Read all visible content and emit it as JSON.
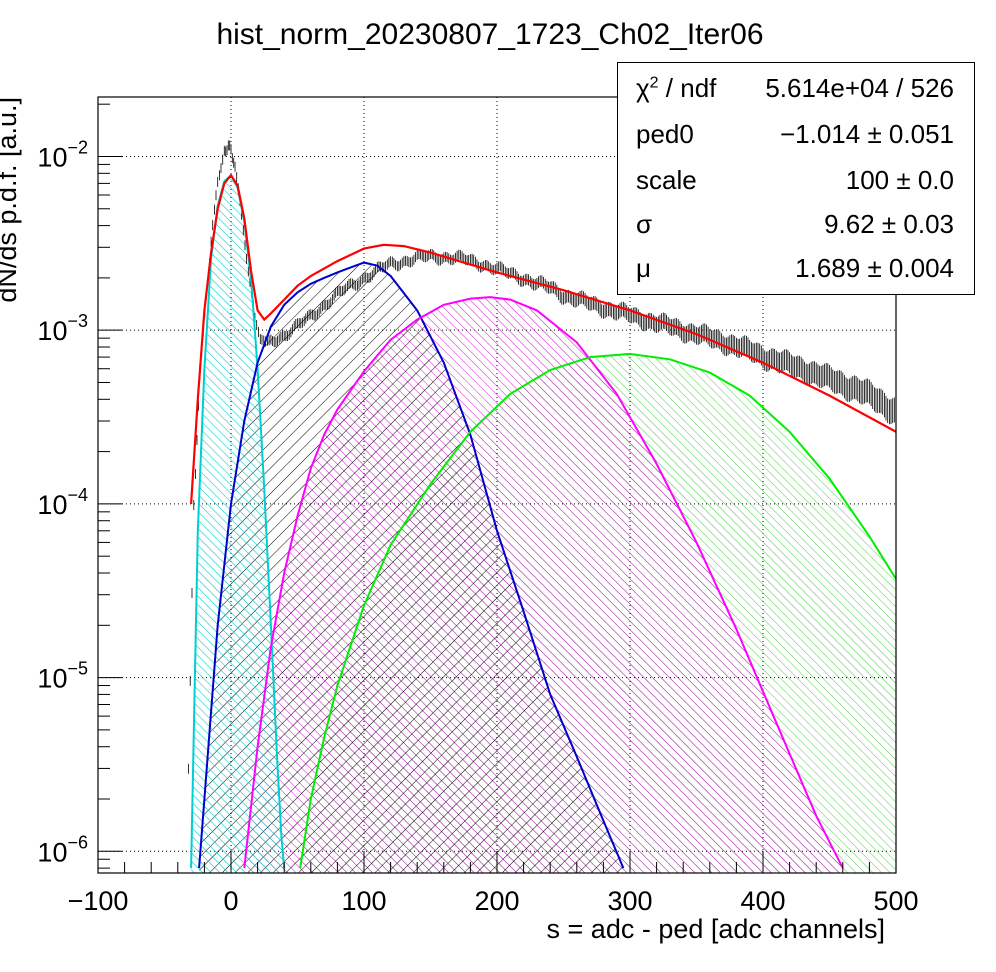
{
  "chart_data": {
    "type": "histogram-fit",
    "title": "hist_norm_20230807_1723_Ch02_Iter06",
    "xlabel": "s = adc - ped [adc channels]",
    "ylabel": "dN/ds p.d.f. [a.u.]",
    "xlim": [
      -100,
      500
    ],
    "ylim": [
      7.5e-07,
      0.022
    ],
    "yscale": "log",
    "grid": true,
    "x_ticks": [
      "−100",
      "0",
      "100",
      "200",
      "300",
      "400",
      "500"
    ],
    "x_tick_values": [
      -100,
      0,
      100,
      200,
      300,
      400,
      500
    ],
    "y_ticks": [
      {
        "base": "10",
        "exp": "−6",
        "value": 1e-06
      },
      {
        "base": "10",
        "exp": "−5",
        "value": 1e-05
      },
      {
        "base": "10",
        "exp": "−4",
        "value": 0.0001
      },
      {
        "base": "10",
        "exp": "−3",
        "value": 0.001
      },
      {
        "base": "10",
        "exp": "−2",
        "value": 0.01
      }
    ],
    "data_histogram": {
      "color": "#000000",
      "x": [
        -32,
        -28,
        -22,
        -15,
        -10,
        -5,
        -2,
        0,
        3,
        8,
        13,
        18,
        22,
        26,
        30,
        40,
        50,
        60,
        70,
        80,
        90,
        100,
        110,
        120,
        130,
        140,
        150,
        160,
        170,
        180,
        190,
        200,
        210,
        220,
        230,
        240,
        250,
        260,
        270,
        280,
        290,
        300,
        310,
        320,
        330,
        340,
        350,
        360,
        370,
        380,
        390,
        400,
        410,
        420,
        430,
        440,
        450,
        460,
        470,
        480,
        490,
        500
      ],
      "y": [
        3e-06,
        0.0001,
        0.0008,
        0.0032,
        0.007,
        0.0105,
        0.0115,
        0.011,
        0.0085,
        0.0045,
        0.0022,
        0.0012,
        0.0009,
        0.00086,
        0.00087,
        0.00094,
        0.00105,
        0.0012,
        0.0014,
        0.0016,
        0.0018,
        0.002,
        0.0022,
        0.0024,
        0.0025,
        0.0026,
        0.00265,
        0.00265,
        0.0026,
        0.0025,
        0.0024,
        0.00225,
        0.0021,
        0.002,
        0.00185,
        0.00175,
        0.0016,
        0.0015,
        0.00142,
        0.00135,
        0.00128,
        0.00122,
        0.00116,
        0.0011,
        0.00105,
        0.001,
        0.00095,
        0.0009,
        0.00086,
        0.00081,
        0.00076,
        0.00071,
        0.00067,
        0.00063,
        0.0006,
        0.00056,
        0.00052,
        0.00049,
        0.00046,
        0.00042,
        0.00038,
        0.00034
      ]
    },
    "fit_total": {
      "color": "#ff0000",
      "x": [
        -30,
        -25,
        -20,
        -15,
        -10,
        -5,
        0,
        5,
        10,
        15,
        20,
        25,
        30,
        40,
        50,
        60,
        80,
        100,
        115,
        130,
        150,
        175,
        200,
        250,
        300,
        350,
        400,
        450,
        500
      ],
      "y": [
        0.0001,
        0.0004,
        0.0013,
        0.0028,
        0.005,
        0.007,
        0.0078,
        0.0068,
        0.0044,
        0.0022,
        0.0013,
        0.00115,
        0.00125,
        0.0015,
        0.0018,
        0.00205,
        0.0025,
        0.00295,
        0.0031,
        0.00305,
        0.0028,
        0.00245,
        0.00215,
        0.0017,
        0.0013,
        0.00095,
        0.00065,
        0.00042,
        0.00026
      ]
    },
    "components": [
      {
        "color": "#00ced1",
        "x": [
          -30,
          -25,
          -20,
          -15,
          -10,
          -5,
          0,
          5,
          10,
          15,
          20,
          25,
          30,
          35,
          38,
          40
        ],
        "y": [
          8e-07,
          7e-05,
          0.0006,
          0.0026,
          0.0052,
          0.0072,
          0.0078,
          0.0066,
          0.0042,
          0.002,
          0.0006,
          0.00012,
          2e-05,
          3e-06,
          1.2e-06,
          8e-07
        ]
      },
      {
        "color": "#0000cd",
        "x": [
          -24,
          -10,
          0,
          10,
          20,
          30,
          40,
          50,
          60,
          70,
          80,
          90,
          100,
          110,
          120,
          140,
          160,
          180,
          200,
          220,
          240,
          260,
          280,
          295
        ],
        "y": [
          8e-07,
          2e-05,
          0.0001,
          0.0003,
          0.00065,
          0.00105,
          0.0014,
          0.00165,
          0.00185,
          0.002,
          0.00215,
          0.0023,
          0.00245,
          0.00235,
          0.00205,
          0.0013,
          0.00065,
          0.00025,
          7e-05,
          2.4e-05,
          8e-06,
          3.5e-06,
          1.5e-06,
          8e-07
        ]
      },
      {
        "color": "#ff00ff",
        "x": [
          10,
          20,
          30,
          40,
          50,
          60,
          70,
          80,
          100,
          120,
          140,
          160,
          180,
          195,
          210,
          230,
          260,
          290,
          320,
          350,
          380,
          410,
          440,
          460
        ],
        "y": [
          8e-07,
          4e-06,
          1.5e-05,
          4e-05,
          8.5e-05,
          0.00016,
          0.00025,
          0.00035,
          0.00058,
          0.00088,
          0.00115,
          0.0014,
          0.00152,
          0.00155,
          0.0015,
          0.0013,
          0.00085,
          0.00043,
          0.00017,
          6e-05,
          1.9e-05,
          5.5e-06,
          1.6e-06,
          8e-07
        ]
      },
      {
        "color": "#00ee00",
        "x": [
          52,
          60,
          70,
          80,
          100,
          120,
          150,
          180,
          210,
          240,
          270,
          300,
          330,
          360,
          390,
          420,
          450,
          480,
          500
        ],
        "y": [
          8e-07,
          2e-06,
          4.5e-06,
          9e-06,
          2.6e-05,
          5.8e-05,
          0.00013,
          0.00026,
          0.00043,
          0.00059,
          0.0007,
          0.00073,
          0.00068,
          0.00057,
          0.00042,
          0.00026,
          0.00014,
          6.5e-05,
          3.7e-05
        ]
      }
    ]
  },
  "stats": {
    "chi_label": "χ",
    "chi_sup": "2",
    "chi_suffix": " / ndf",
    "chi_value": "5.614e+04 / 526",
    "rows": [
      {
        "label": "ped0",
        "value": "−1.014 ± 0.051"
      },
      {
        "label": "scale",
        "value": "100 ± 0.0"
      },
      {
        "label": "σ",
        "value": "9.62 ± 0.03"
      },
      {
        "label": "μ",
        "value": "1.689 ± 0.004"
      }
    ]
  }
}
